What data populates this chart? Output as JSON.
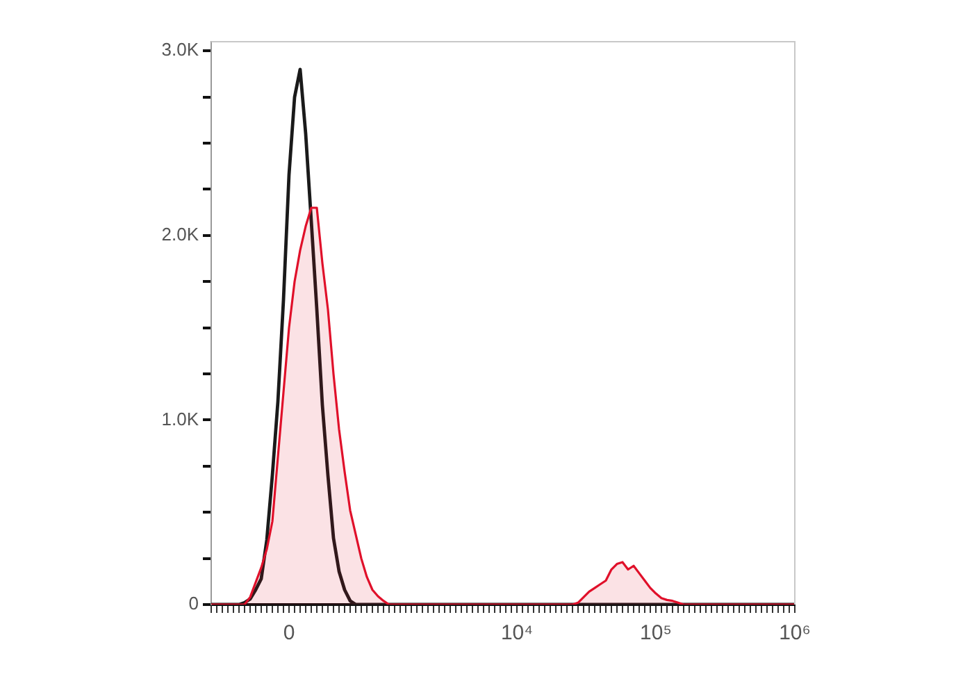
{
  "chart_data": {
    "type": "line",
    "categories": [
      null,
      null,
      null,
      null,
      null,
      null,
      null,
      null,
      null,
      null,
      null,
      null,
      null,
      null,
      "0",
      null,
      null,
      null,
      null,
      null,
      null,
      null,
      null,
      null,
      null,
      null,
      null,
      null,
      null,
      null,
      null,
      null,
      null,
      null,
      null,
      null,
      null,
      null,
      null,
      null,
      null,
      null,
      null,
      null,
      null,
      null,
      null,
      null,
      null,
      null,
      null,
      null,
      null,
      null,
      null,
      "10⁴",
      null,
      null,
      null,
      null,
      null,
      null,
      null,
      null,
      null,
      null,
      null,
      null,
      null,
      null,
      null,
      null,
      null,
      null,
      null,
      null,
      null,
      null,
      null,
      null,
      "10⁵",
      null,
      null,
      null,
      null,
      null,
      null,
      null,
      null,
      null,
      null,
      null,
      null,
      null,
      null,
      null,
      null,
      null,
      null,
      null,
      null,
      null,
      null,
      null,
      null,
      "10⁶"
    ],
    "series": [
      {
        "type": "area",
        "color": "#e0102a",
        "values": [
          0,
          0,
          0,
          0,
          0,
          0,
          0,
          40,
          120,
          200,
          300,
          450,
          800,
          1150,
          1500,
          1750,
          1920,
          2050,
          2150,
          2150,
          1850,
          1600,
          1250,
          950,
          720,
          510,
          380,
          250,
          150,
          80,
          45,
          20,
          0,
          0,
          0,
          0,
          0,
          0,
          0,
          0,
          0,
          0,
          0,
          0,
          0,
          0,
          0,
          0,
          0,
          0,
          0,
          0,
          0,
          0,
          0,
          0,
          0,
          0,
          0,
          0,
          0,
          0,
          0,
          0,
          0,
          0,
          10,
          40,
          70,
          90,
          110,
          130,
          190,
          220,
          230,
          190,
          210,
          170,
          130,
          90,
          60,
          35,
          25,
          20,
          10,
          0,
          0,
          0,
          0,
          0,
          0,
          0,
          0,
          0,
          0,
          0,
          0,
          0,
          0,
          0,
          0,
          0,
          0,
          0,
          0,
          0
        ]
      },
      {
        "color": "#1a1a1a",
        "values": [
          0,
          0,
          0,
          0,
          0,
          0,
          10,
          30,
          80,
          140,
          350,
          700,
          1100,
          1650,
          2330,
          2750,
          2900,
          2550,
          2080,
          1600,
          1080,
          700,
          360,
          180,
          80,
          20,
          0,
          0,
          0,
          0,
          0,
          0,
          0,
          0,
          0,
          0,
          0,
          0,
          0,
          0,
          0,
          0,
          0,
          0,
          0,
          0,
          0,
          0,
          0,
          0,
          0,
          0,
          0,
          0,
          0,
          0,
          0,
          0,
          0,
          0,
          0,
          0,
          0,
          0,
          0,
          0,
          0,
          0,
          0,
          0,
          0,
          0,
          0,
          0,
          0,
          0,
          0,
          0,
          0,
          0,
          0,
          0,
          0,
          0,
          0,
          0,
          0,
          0,
          0,
          0,
          0,
          0,
          0,
          0,
          0,
          0,
          0,
          0,
          0,
          0,
          0,
          0,
          0,
          0,
          0,
          0
        ]
      }
    ],
    "ylim": [
      0,
      3050
    ],
    "yticks": [
      0,
      {
        "value": 250,
        "label": null
      },
      {
        "value": 500,
        "label": null
      },
      {
        "value": 750,
        "label": null
      },
      {
        "value": 1000,
        "label": "1.0K"
      },
      {
        "value": 1250,
        "label": null
      },
      {
        "value": 1500,
        "label": null
      },
      {
        "value": 1750,
        "label": null
      },
      {
        "value": 2000,
        "label": "2.0K"
      },
      {
        "value": 2250,
        "label": null
      },
      {
        "value": 2500,
        "label": null
      },
      {
        "value": 2750,
        "label": null
      },
      {
        "value": 3000,
        "label": "3.0K"
      }
    ],
    "grid": false,
    "legend": false,
    "marker": "none",
    "line_style": "solid"
  }
}
